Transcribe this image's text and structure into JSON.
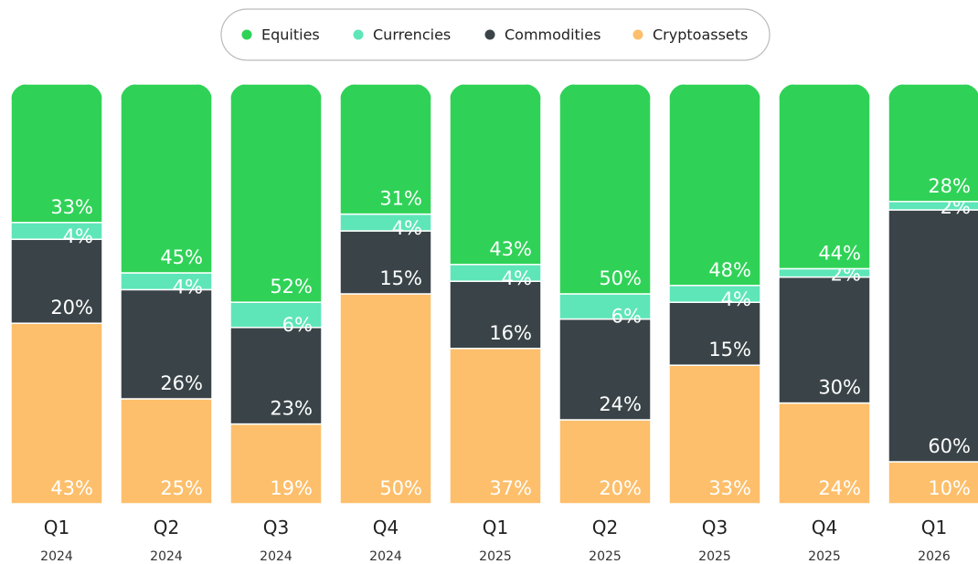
{
  "chart_data": {
    "type": "stacked_bar",
    "categories": [
      [
        "Q1",
        "2024"
      ],
      [
        "Q2",
        "2024"
      ],
      [
        "Q3",
        "2024"
      ],
      [
        "Q4",
        "2024"
      ],
      [
        "Q1",
        "2025"
      ],
      [
        "Q2",
        "2025"
      ],
      [
        "Q3",
        "2025"
      ],
      [
        "Q4",
        "2025"
      ],
      [
        "Q1",
        "2026"
      ]
    ],
    "ylim": [
      0,
      100
    ],
    "series": [
      {
        "name": "Cryptoassets",
        "color": "#fdbf6b",
        "values": [
          43,
          25,
          19,
          50,
          37,
          20,
          33,
          24,
          10
        ],
        "value_labels": [
          "43%",
          "25%",
          "19%",
          "50%",
          "37%",
          "20%",
          "33%",
          "24%",
          "10%"
        ]
      },
      {
        "name": "Commodities",
        "color": "#3a4448",
        "values": [
          20,
          26,
          23,
          15,
          16,
          24,
          15,
          30,
          60
        ],
        "value_labels": [
          "20%",
          "26%",
          "23%",
          "15%",
          "16%",
          "24%",
          "15%",
          "30%",
          "60%"
        ]
      },
      {
        "name": "Currencies",
        "color": "#5ee6b8",
        "values": [
          4,
          4,
          6,
          4,
          4,
          6,
          4,
          2,
          2
        ],
        "value_labels": [
          "4%",
          "4%",
          "6%",
          "4%",
          "4%",
          "6%",
          "4%",
          "2%",
          "2%"
        ]
      },
      {
        "name": "Equities",
        "color": "#2fd257",
        "values": [
          33,
          45,
          52,
          31,
          43,
          50,
          48,
          44,
          28
        ],
        "value_labels": [
          "33%",
          "45%",
          "52%",
          "31%",
          "43%",
          "50%",
          "48%",
          "44%",
          "28%"
        ]
      }
    ],
    "legend_order": [
      "Equities",
      "Currencies",
      "Commodities",
      "Cryptoassets"
    ]
  }
}
